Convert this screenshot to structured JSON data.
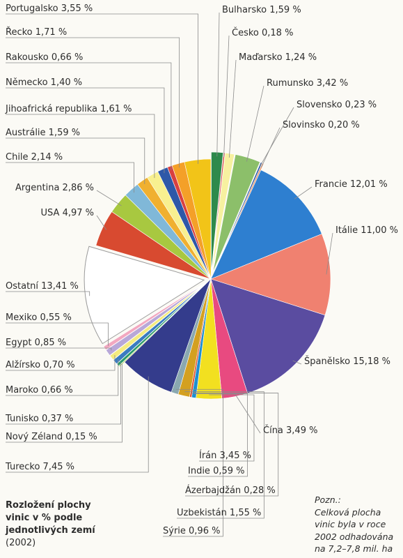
{
  "chart_data": {
    "type": "pie",
    "title": "Rozložení plochy\nvinic v % podle\njednotlivých zemí",
    "subtitle": "(2002)",
    "unit": "%",
    "slices": [
      {
        "label": "Bulharsko",
        "value_text": "1,59 %",
        "value": 1.59,
        "color": "#2e8a4c",
        "exploded": true
      },
      {
        "label": "Česko",
        "value_text": "0,18 %",
        "value": 0.18,
        "color": "#d63a34",
        "exploded": true
      },
      {
        "label": "Maďarsko",
        "value_text": "1,24 %",
        "value": 1.24,
        "color": "#f7f1a0",
        "exploded": true
      },
      {
        "label": "Rumunsko",
        "value_text": "3,42 %",
        "value": 3.42,
        "color": "#8cbf6a",
        "exploded": true
      },
      {
        "label": "Slovensko",
        "value_text": "0,23 %",
        "value": 0.23,
        "color": "#2e5da8",
        "exploded": true
      },
      {
        "label": "Slovinsko",
        "value_text": "0,20 %",
        "value": 0.2,
        "color": "#e89060",
        "exploded": true
      },
      {
        "label": "Francie",
        "value_text": "12,01 %",
        "value": 12.01,
        "color": "#2e7fd0",
        "exploded": false
      },
      {
        "label": "Itálie",
        "value_text": "11,00 %",
        "value": 11.0,
        "color": "#f08170",
        "exploded": false
      },
      {
        "label": "Španělsko",
        "value_text": "15,18 %",
        "value": 15.18,
        "color": "#5a4ca0",
        "exploded": false
      },
      {
        "label": "Čína",
        "value_text": "3,49 %",
        "value": 3.49,
        "color": "#e84a80",
        "exploded": false
      },
      {
        "label": "Írán",
        "value_text": "3,45 %",
        "value": 3.45,
        "color": "#f2e020",
        "exploded": false
      },
      {
        "label": "Indie",
        "value_text": "0,59 %",
        "value": 0.59,
        "color": "#1e8fd0",
        "exploded": false
      },
      {
        "label": "Ázerbajdžán",
        "value_text": "0,28 %",
        "value": 0.28,
        "color": "#e05030",
        "exploded": false
      },
      {
        "label": "Uzbekistán",
        "value_text": "1,55 %",
        "value": 1.55,
        "color": "#d4a020",
        "exploded": false
      },
      {
        "label": "Sýrie",
        "value_text": "0,96 %",
        "value": 0.96,
        "color": "#8aa8b0",
        "exploded": false
      },
      {
        "label": "Turecko",
        "value_text": "7,45 %",
        "value": 7.45,
        "color": "#343c8c",
        "exploded": false
      },
      {
        "label": "Nový Zéland",
        "value_text": "0,15 %",
        "value": 0.15,
        "color": "#b0d060",
        "exploded": true
      },
      {
        "label": "Tunisko",
        "value_text": "0,37 %",
        "value": 0.37,
        "color": "#2a9a6a",
        "exploded": true
      },
      {
        "label": "Maroko",
        "value_text": "0,66 %",
        "value": 0.66,
        "color": "#3a7cc0",
        "exploded": true
      },
      {
        "label": "Alžírsko",
        "value_text": "0,70 %",
        "value": 0.7,
        "color": "#f4ec80",
        "exploded": true
      },
      {
        "label": "Egypt",
        "value_text": "0,85 %",
        "value": 0.85,
        "color": "#b8a8d8",
        "exploded": true
      },
      {
        "label": "Mexiko",
        "value_text": "0,55 %",
        "value": 0.55,
        "color": "#f2a8c0",
        "exploded": true
      },
      {
        "label": "Ostatní",
        "value_text": "13,41 %",
        "value": 13.41,
        "color": "#ffffff",
        "exploded": true
      },
      {
        "label": "USA",
        "value_text": "4,97 %",
        "value": 4.97,
        "color": "#d84a30",
        "exploded": false
      },
      {
        "label": "Argentina",
        "value_text": "2,86 %",
        "value": 2.86,
        "color": "#a8c840",
        "exploded": false
      },
      {
        "label": "Chile",
        "value_text": "2,14 %",
        "value": 2.14,
        "color": "#80b8d8",
        "exploded": false
      },
      {
        "label": "Austrálie",
        "value_text": "1,59 %",
        "value": 1.59,
        "color": "#f0b030",
        "exploded": false
      },
      {
        "label": "Jihoafrická republika",
        "value_text": "1,61 %",
        "value": 1.61,
        "color": "#f8f090",
        "exploded": false
      },
      {
        "label": "Německo",
        "value_text": "1,40 %",
        "value": 1.4,
        "color": "#2e58a8",
        "exploded": false
      },
      {
        "label": "Rakousko",
        "value_text": "0,66 %",
        "value": 0.66,
        "color": "#d84040",
        "exploded": false
      },
      {
        "label": "Řecko",
        "value_text": "1,71 %",
        "value": 1.71,
        "color": "#f4a028",
        "exploded": false
      },
      {
        "label": "Portugalsko",
        "value_text": "3,55 %",
        "value": 3.55,
        "color": "#f2c418",
        "exploded": false
      }
    ]
  },
  "caption": {
    "title": "Rozložení plochy\nvinic v % podle\njednotlivých zemí",
    "year": "(2002)"
  },
  "note": "Pozn.:\nCelková plocha\nvinic byla v roce\n2002 odhadována\nna 7,2–7,8 mil. ha"
}
